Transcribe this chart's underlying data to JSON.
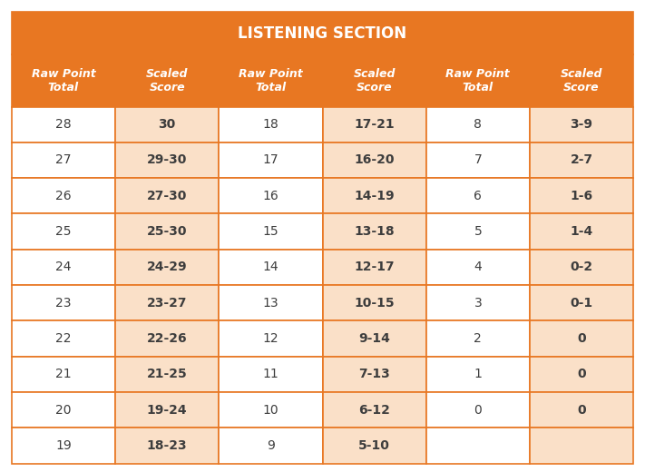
{
  "title": "LISTENING SECTION",
  "title_bg": "#E87722",
  "title_color": "#FFFFFF",
  "header_bg": "#E87722",
  "header_color": "#FFFFFF",
  "col_bgs": [
    "#FFFFFF",
    "#FAE0C8",
    "#FFFFFF",
    "#FAE0C8",
    "#FFFFFF",
    "#FAE0C8"
  ],
  "border_color": "#E87722",
  "text_color_data": "#3D3D3D",
  "headers": [
    [
      "Raw Point",
      "Total"
    ],
    [
      "Scaled",
      "Score"
    ],
    [
      "Raw Point",
      "Total"
    ],
    [
      "Scaled",
      "Score"
    ],
    [
      "Raw Point",
      "Total"
    ],
    [
      "Scaled",
      "Score"
    ]
  ],
  "rows": [
    [
      "28",
      "30",
      "18",
      "17-21",
      "8",
      "3-9"
    ],
    [
      "27",
      "29-30",
      "17",
      "16-20",
      "7",
      "2-7"
    ],
    [
      "26",
      "27-30",
      "16",
      "14-19",
      "6",
      "1-6"
    ],
    [
      "25",
      "25-30",
      "15",
      "13-18",
      "5",
      "1-4"
    ],
    [
      "24",
      "24-29",
      "14",
      "12-17",
      "4",
      "0-2"
    ],
    [
      "23",
      "23-27",
      "13",
      "10-15",
      "3",
      "0-1"
    ],
    [
      "22",
      "22-26",
      "12",
      "9-14",
      "2",
      "0"
    ],
    [
      "21",
      "21-25",
      "11",
      "7-13",
      "1",
      "0"
    ],
    [
      "20",
      "19-24",
      "10",
      "6-12",
      "0",
      "0"
    ],
    [
      "19",
      "18-23",
      "9",
      "5-10",
      "",
      ""
    ]
  ],
  "figsize": [
    7.11,
    5.2
  ],
  "dpi": 100,
  "title_fontsize": 12,
  "header_fontsize": 9,
  "data_fontsize": 10,
  "border_lw": 1.2
}
